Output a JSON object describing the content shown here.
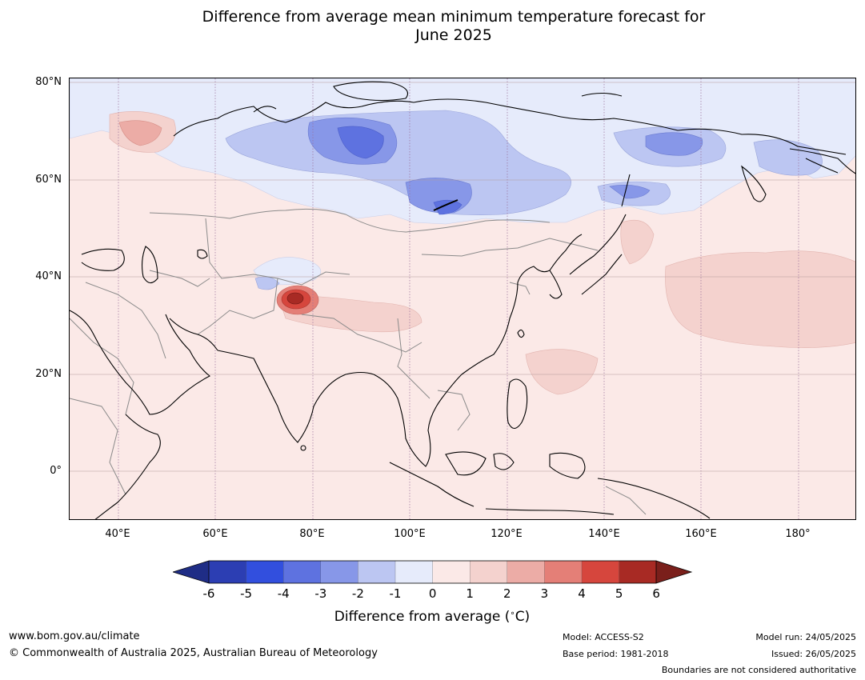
{
  "title": {
    "line1": "Difference from average mean minimum temperature forecast for",
    "line2": "June 2025"
  },
  "map": {
    "region": "Asia",
    "projection": "equirectangular",
    "lon_range": [
      30,
      192
    ],
    "lat_range": [
      -10,
      81
    ],
    "background_anomaly_class": "0 to 1"
  },
  "axes": {
    "lat_labels": [
      "80°N",
      "60°N",
      "40°N",
      "20°N",
      "0°"
    ],
    "lon_labels": [
      "40°E",
      "60°E",
      "80°E",
      "100°E",
      "120°E",
      "140°E",
      "160°E",
      "180°"
    ]
  },
  "colorbar": {
    "ticks": [
      "-6",
      "-5",
      "-4",
      "-3",
      "-2",
      "-1",
      "0",
      "1",
      "2",
      "3",
      "4",
      "5",
      "6"
    ],
    "colors": [
      "#1f2d86",
      "#2c3eb3",
      "#324fde",
      "#5e72e0",
      "#8797e8",
      "#bcc6f2",
      "#e6ebfb",
      "#fbe9e7",
      "#f4d2ce",
      "#ecaca6",
      "#e47f77",
      "#d6463d",
      "#a82a24",
      "#7a1f1b"
    ],
    "label": "Difference from average (",
    "label_unit": "C)"
  },
  "footer": {
    "website": "www.bom.gov.au/climate",
    "copyright": "© Commonwealth of Australia 2025, Australian Bureau of Meteorology",
    "model": "Model: ACCESS-S2",
    "base_period": "Base period: 1981-2018",
    "model_run": "Model run: 24/05/2025",
    "issued": "Issued: 26/05/2025",
    "disclaimer": "Boundaries are not considered authoritative"
  }
}
